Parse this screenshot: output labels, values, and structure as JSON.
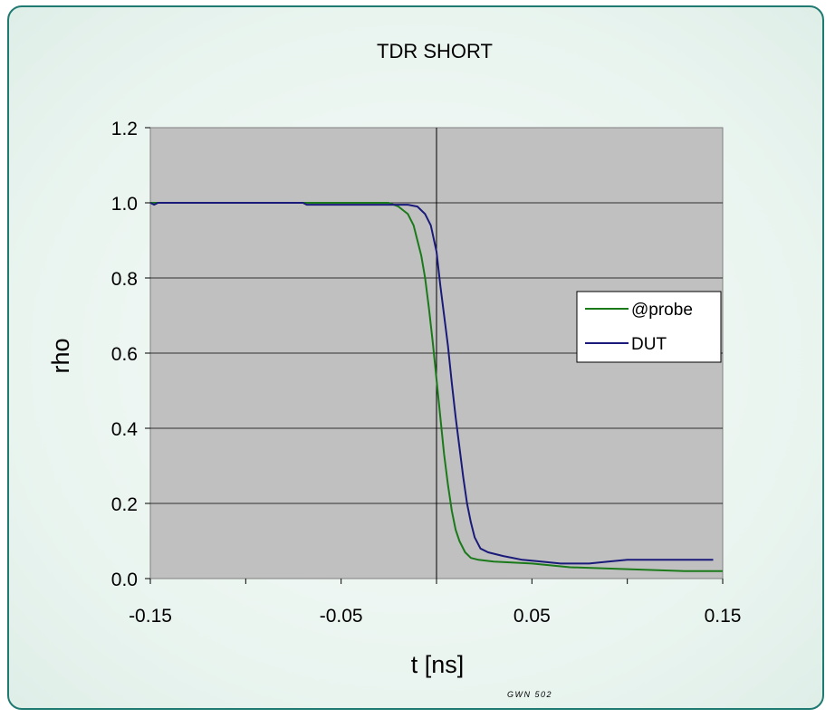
{
  "chart_data": {
    "type": "line",
    "title": "TDR SHORT",
    "xlabel": "t [ns]",
    "ylabel": "rho",
    "xlim": [
      -0.15,
      0.15
    ],
    "ylim": [
      0.0,
      1.2
    ],
    "x_ticks": [
      "-0.15",
      "-0.05",
      "0.05",
      "0.15"
    ],
    "y_ticks": [
      "0.0",
      "0.2",
      "0.4",
      "0.6",
      "0.8",
      "1.0",
      "1.2"
    ],
    "grid": "horizontal",
    "plot_background": "#c0c0c0",
    "legend_position": "right",
    "series": [
      {
        "name": "@probe",
        "color": "#1a7a1a",
        "points": [
          [
            -0.15,
            1.0
          ],
          [
            -0.05,
            1.0
          ],
          [
            -0.025,
            1.0
          ],
          [
            -0.02,
            0.99
          ],
          [
            -0.015,
            0.97
          ],
          [
            -0.012,
            0.94
          ],
          [
            -0.01,
            0.9
          ],
          [
            -0.008,
            0.86
          ],
          [
            -0.006,
            0.8
          ],
          [
            -0.004,
            0.72
          ],
          [
            -0.002,
            0.63
          ],
          [
            0.0,
            0.53
          ],
          [
            0.002,
            0.43
          ],
          [
            0.004,
            0.33
          ],
          [
            0.006,
            0.25
          ],
          [
            0.008,
            0.18
          ],
          [
            0.01,
            0.13
          ],
          [
            0.012,
            0.1
          ],
          [
            0.015,
            0.07
          ],
          [
            0.018,
            0.055
          ],
          [
            0.022,
            0.05
          ],
          [
            0.03,
            0.045
          ],
          [
            0.05,
            0.04
          ],
          [
            0.07,
            0.03
          ],
          [
            0.1,
            0.025
          ],
          [
            0.13,
            0.02
          ],
          [
            0.15,
            0.02
          ]
        ]
      },
      {
        "name": "DUT",
        "color": "#1a1a7a",
        "points": [
          [
            -0.15,
            1.0
          ],
          [
            -0.148,
            0.995
          ],
          [
            -0.146,
            1.0
          ],
          [
            -0.07,
            1.0
          ],
          [
            -0.068,
            0.995
          ],
          [
            -0.015,
            0.995
          ],
          [
            -0.01,
            0.99
          ],
          [
            -0.006,
            0.97
          ],
          [
            -0.003,
            0.94
          ],
          [
            0.0,
            0.87
          ],
          [
            0.002,
            0.78
          ],
          [
            0.004,
            0.7
          ],
          [
            0.006,
            0.62
          ],
          [
            0.008,
            0.52
          ],
          [
            0.01,
            0.43
          ],
          [
            0.012,
            0.35
          ],
          [
            0.014,
            0.27
          ],
          [
            0.016,
            0.2
          ],
          [
            0.018,
            0.15
          ],
          [
            0.02,
            0.11
          ],
          [
            0.023,
            0.08
          ],
          [
            0.027,
            0.07
          ],
          [
            0.035,
            0.06
          ],
          [
            0.045,
            0.05
          ],
          [
            0.055,
            0.045
          ],
          [
            0.065,
            0.04
          ],
          [
            0.08,
            0.04
          ],
          [
            0.09,
            0.045
          ],
          [
            0.1,
            0.05
          ],
          [
            0.145,
            0.05
          ]
        ]
      }
    ]
  },
  "footer_note": "GWN 502"
}
